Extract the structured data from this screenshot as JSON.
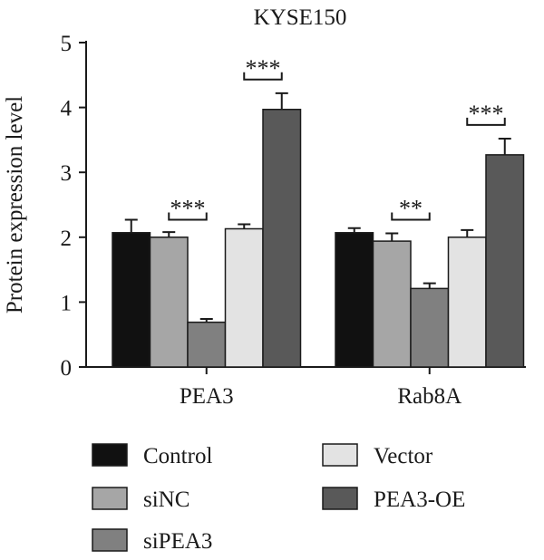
{
  "chart_data": {
    "type": "bar",
    "title": "KYSE150",
    "xlabel": "",
    "ylabel": "Protein expression level",
    "ylim": [
      0,
      5
    ],
    "yticks": [
      0,
      1,
      2,
      3,
      4,
      5
    ],
    "categories": [
      "PEA3",
      "Rab8A"
    ],
    "series": [
      {
        "name": "Control",
        "color": "#111111",
        "values": [
          2.07,
          2.07
        ],
        "errors": [
          0.2,
          0.07
        ]
      },
      {
        "name": "siNC",
        "color": "#a6a6a6",
        "values": [
          2.0,
          1.94
        ],
        "errors": [
          0.08,
          0.12
        ]
      },
      {
        "name": "siPEA3",
        "color": "#808080",
        "values": [
          0.69,
          1.21
        ],
        "errors": [
          0.05,
          0.08
        ]
      },
      {
        "name": "Vector",
        "color": "#e3e3e3",
        "values": [
          2.13,
          2.0
        ],
        "errors": [
          0.07,
          0.11
        ]
      },
      {
        "name": "PEA3-OE",
        "color": "#595959",
        "values": [
          3.97,
          3.27
        ],
        "errors": [
          0.25,
          0.25
        ]
      }
    ],
    "annotations": [
      {
        "category": 0,
        "from_series": 1,
        "to_series": 2,
        "label": "***",
        "y": 2.27
      },
      {
        "category": 0,
        "from_series": 3,
        "to_series": 4,
        "label": "***",
        "y": 4.43
      },
      {
        "category": 1,
        "from_series": 1,
        "to_series": 2,
        "label": "**",
        "y": 2.27
      },
      {
        "category": 1,
        "from_series": 3,
        "to_series": 4,
        "label": "***",
        "y": 3.73
      }
    ],
    "legend_position": "bottom",
    "grid": false
  }
}
